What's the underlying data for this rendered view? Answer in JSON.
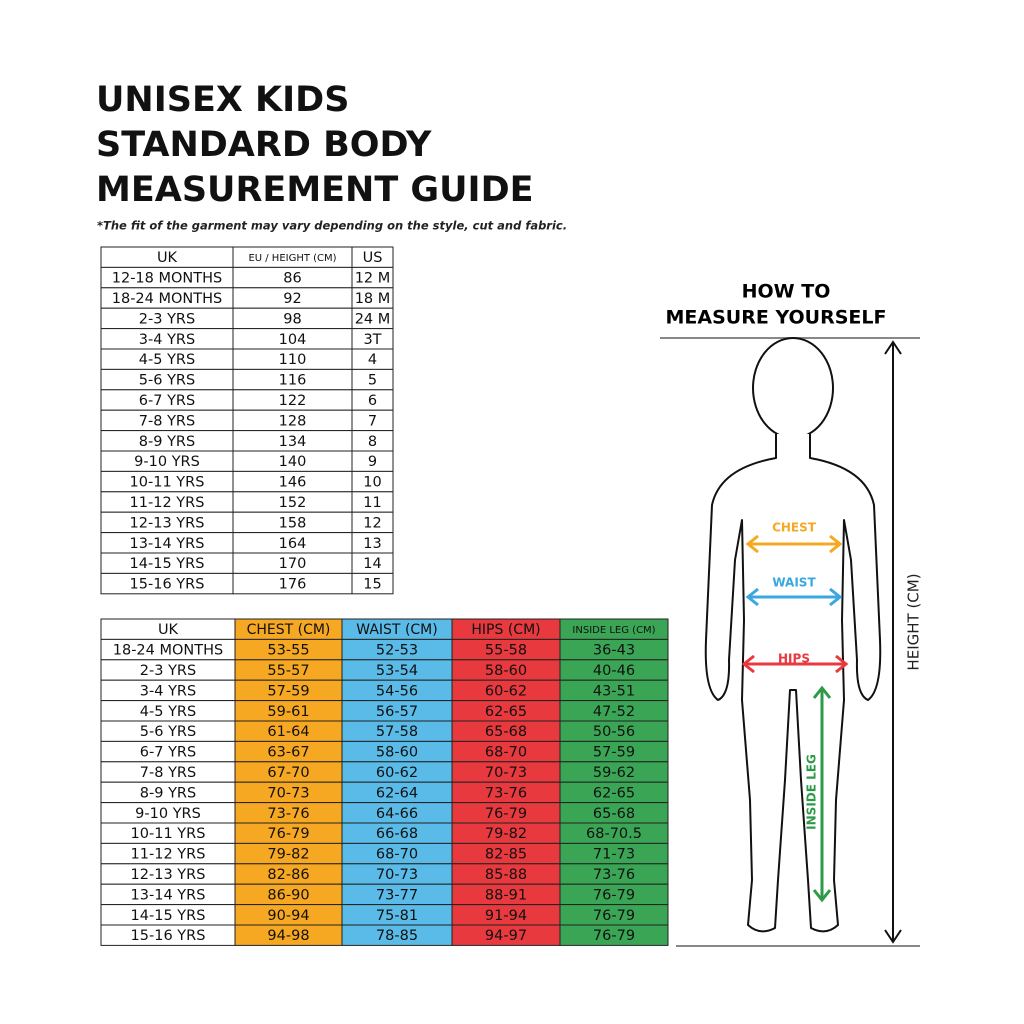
{
  "title_lines": [
    "UNISEX KIDS",
    "STANDARD BODY",
    "MEASUREMENT GUIDE"
  ],
  "note": "*The fit of the garment may vary depending on the style, cut and fabric.",
  "size_table": {
    "header": [
      "UK",
      "EU / HEIGHT (CM)",
      "US"
    ],
    "rows": [
      [
        "12-18 MONTHS",
        "86",
        "12 M"
      ],
      [
        "18-24 MONTHS",
        "92",
        "18 M"
      ],
      [
        "2-3 YRS",
        "98",
        "24 M"
      ],
      [
        "3-4 YRS",
        "104",
        "3T"
      ],
      [
        "4-5 YRS",
        "110",
        "4"
      ],
      [
        "5-6 YRS",
        "116",
        "5"
      ],
      [
        "6-7 YRS",
        "122",
        "6"
      ],
      [
        "7-8 YRS",
        "128",
        "7"
      ],
      [
        "8-9 YRS",
        "134",
        "8"
      ],
      [
        "9-10 YRS",
        "140",
        "9"
      ],
      [
        "10-11 YRS",
        "146",
        "10"
      ],
      [
        "11-12 YRS",
        "152",
        "11"
      ],
      [
        "12-13 YRS",
        "158",
        "12"
      ],
      [
        "13-14 YRS",
        "164",
        "13"
      ],
      [
        "14-15 YRS",
        "170",
        "14"
      ],
      [
        "15-16 YRS",
        "176",
        "15"
      ]
    ]
  },
  "measure_table": {
    "header": [
      "UK",
      "CHEST (CM)",
      "WAIST (CM)",
      "HIPS (CM)",
      "INSIDE LEG (CM)"
    ],
    "rows": [
      [
        "18-24 MONTHS",
        "53-55",
        "52-53",
        "55-58",
        "36-43"
      ],
      [
        "2-3 YRS",
        "55-57",
        "53-54",
        "58-60",
        "40-46"
      ],
      [
        "3-4 YRS",
        "57-59",
        "54-56",
        "60-62",
        "43-51"
      ],
      [
        "4-5 YRS",
        "59-61",
        "56-57",
        "62-65",
        "47-52"
      ],
      [
        "5-6 YRS",
        "61-64",
        "57-58",
        "65-68",
        "50-56"
      ],
      [
        "6-7 YRS",
        "63-67",
        "58-60",
        "68-70",
        "57-59"
      ],
      [
        "7-8 YRS",
        "67-70",
        "60-62",
        "70-73",
        "59-62"
      ],
      [
        "8-9 YRS",
        "70-73",
        "62-64",
        "73-76",
        "62-65"
      ],
      [
        "9-10 YRS",
        "73-76",
        "64-66",
        "76-79",
        "65-68"
      ],
      [
        "10-11 YRS",
        "76-79",
        "66-68",
        "79-82",
        "68-70.5"
      ],
      [
        "11-12 YRS",
        "79-82",
        "68-70",
        "82-85",
        "71-73"
      ],
      [
        "12-13 YRS",
        "82-86",
        "70-73",
        "85-88",
        "73-76"
      ],
      [
        "13-14 YRS",
        "86-90",
        "73-77",
        "88-91",
        "76-79"
      ],
      [
        "14-15 YRS",
        "90-94",
        "75-81",
        "91-94",
        "76-79"
      ],
      [
        "15-16 YRS",
        "94-98",
        "78-85",
        "94-97",
        "76-79"
      ]
    ]
  },
  "figure": {
    "heading_lines": [
      "HOW TO",
      "MEASURE YOURSELF"
    ],
    "chest": "CHEST",
    "waist": "WAIST",
    "hips": "HIPS",
    "inside_leg": "INSIDE LEG",
    "height": "HEIGHT (CM)"
  }
}
